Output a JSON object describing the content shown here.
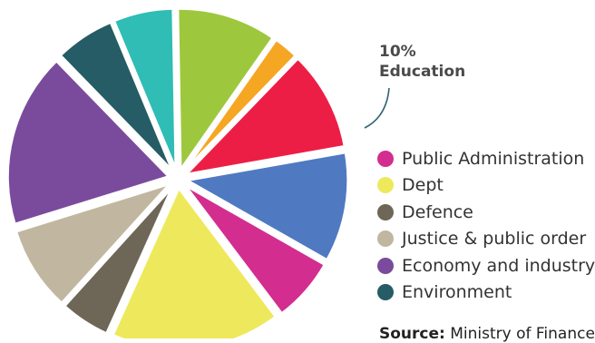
{
  "chart_data": {
    "type": "pie",
    "slices": [
      {
        "label": "",
        "value": 10,
        "color": "#9dc83d"
      },
      {
        "label": "",
        "value": 2.5,
        "color": "#f5a623"
      },
      {
        "label": "Education",
        "value": 10,
        "color": "#ed1e45"
      },
      {
        "label": "",
        "value": 11,
        "color": "#4f7ac2"
      },
      {
        "label": "Public Administration",
        "value": 6.5,
        "color": "#d32d8f"
      },
      {
        "label": "Dept",
        "value": 17,
        "color": "#eee95c"
      },
      {
        "label": "Defence",
        "value": 5,
        "color": "#6e6657"
      },
      {
        "label": "Justice & public order",
        "value": 8.5,
        "color": "#c1b7a0"
      },
      {
        "label": "Economy and industry",
        "value": 17.5,
        "color": "#7a4b9c"
      },
      {
        "label": "Environment",
        "value": 6,
        "color": "#255c65"
      },
      {
        "label": "",
        "value": 6,
        "color": "#2fbdb5"
      }
    ],
    "legend_placement": "right"
  },
  "callout": {
    "percent": "10%",
    "label": "Education"
  },
  "legend": [
    {
      "label": "Public Administration",
      "color": "#d32d8f"
    },
    {
      "label": "Dept",
      "color": "#eee95c"
    },
    {
      "label": "Defence",
      "color": "#6e6657"
    },
    {
      "label": "Justice & public order",
      "color": "#c1b7a0"
    },
    {
      "label": "Economy and industry",
      "color": "#7a4b9c"
    },
    {
      "label": "Environment",
      "color": "#255c65"
    }
  ],
  "source": {
    "label": "Source:",
    "text": "Ministry of Finance"
  }
}
